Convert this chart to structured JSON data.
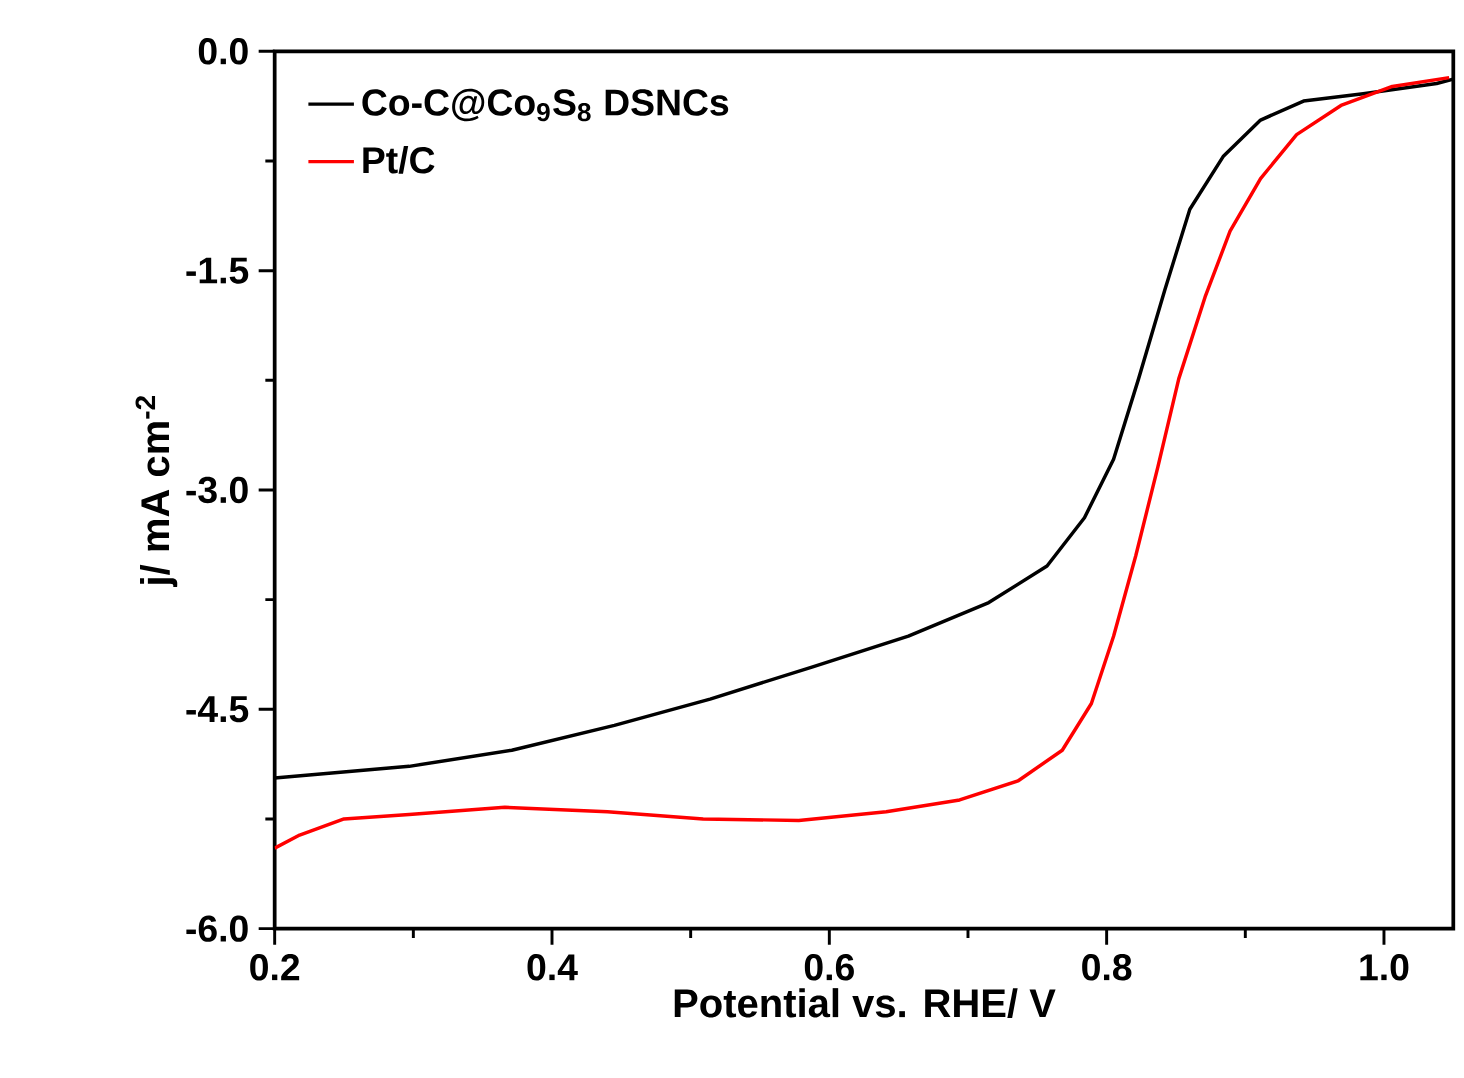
{
  "chart_data": {
    "type": "line",
    "xlabel": "Potential vs. RHE/ V",
    "ylabel": "j/ mA cm$^{-2}$",
    "xlim": [
      0.2,
      1.05
    ],
    "ylim": [
      -6.0,
      0.0
    ],
    "xticks": [
      {
        "value": 0.2,
        "label": "0.2"
      },
      {
        "value": 0.4,
        "label": "0.4"
      },
      {
        "value": 0.6,
        "label": "0.6"
      },
      {
        "value": 0.8,
        "label": "0.8"
      },
      {
        "value": 1.0,
        "label": "1.0"
      }
    ],
    "yticks": [
      {
        "value": -6.0,
        "label": "-6.0"
      },
      {
        "value": -4.5,
        "label": "-4.5"
      },
      {
        "value": -3.0,
        "label": "-3.0"
      },
      {
        "value": -1.5,
        "label": "-1.5"
      },
      {
        "value": 0.0,
        "label": "0.0"
      }
    ],
    "legend": "top left",
    "marker": "none",
    "line_style": "solid",
    "grid": false,
    "series": [
      {
        "name": "Co-C@Co$_{9}$S$_{8}$ DSNCs",
        "color": "#000000",
        "x": [
          0.2,
          0.297,
          0.371,
          0.445,
          0.514,
          0.588,
          0.657,
          0.715,
          0.757,
          0.784,
          0.805,
          0.823,
          0.842,
          0.86,
          0.884,
          0.911,
          0.942,
          0.985,
          1.038,
          1.05
        ],
        "values": [
          -4.97,
          -4.89,
          -4.78,
          -4.61,
          -4.43,
          -4.21,
          -4.0,
          -3.77,
          -3.52,
          -3.19,
          -2.79,
          -2.24,
          -1.63,
          -1.08,
          -0.72,
          -0.47,
          -0.34,
          -0.29,
          -0.22,
          -0.19
        ]
      },
      {
        "name": "Pt/C",
        "color": "#ff0000",
        "x": [
          0.2,
          0.218,
          0.25,
          0.297,
          0.366,
          0.44,
          0.509,
          0.578,
          0.641,
          0.694,
          0.736,
          0.768,
          0.789,
          0.805,
          0.821,
          0.837,
          0.852,
          0.871,
          0.889,
          0.911,
          0.937,
          0.969,
          1.006,
          1.047
        ],
        "values": [
          -5.45,
          -5.36,
          -5.25,
          -5.22,
          -5.17,
          -5.2,
          -5.25,
          -5.26,
          -5.2,
          -5.12,
          -4.99,
          -4.78,
          -4.46,
          -4.0,
          -3.45,
          -2.84,
          -2.24,
          -1.68,
          -1.23,
          -0.87,
          -0.57,
          -0.37,
          -0.24,
          -0.18
        ]
      }
    ]
  }
}
